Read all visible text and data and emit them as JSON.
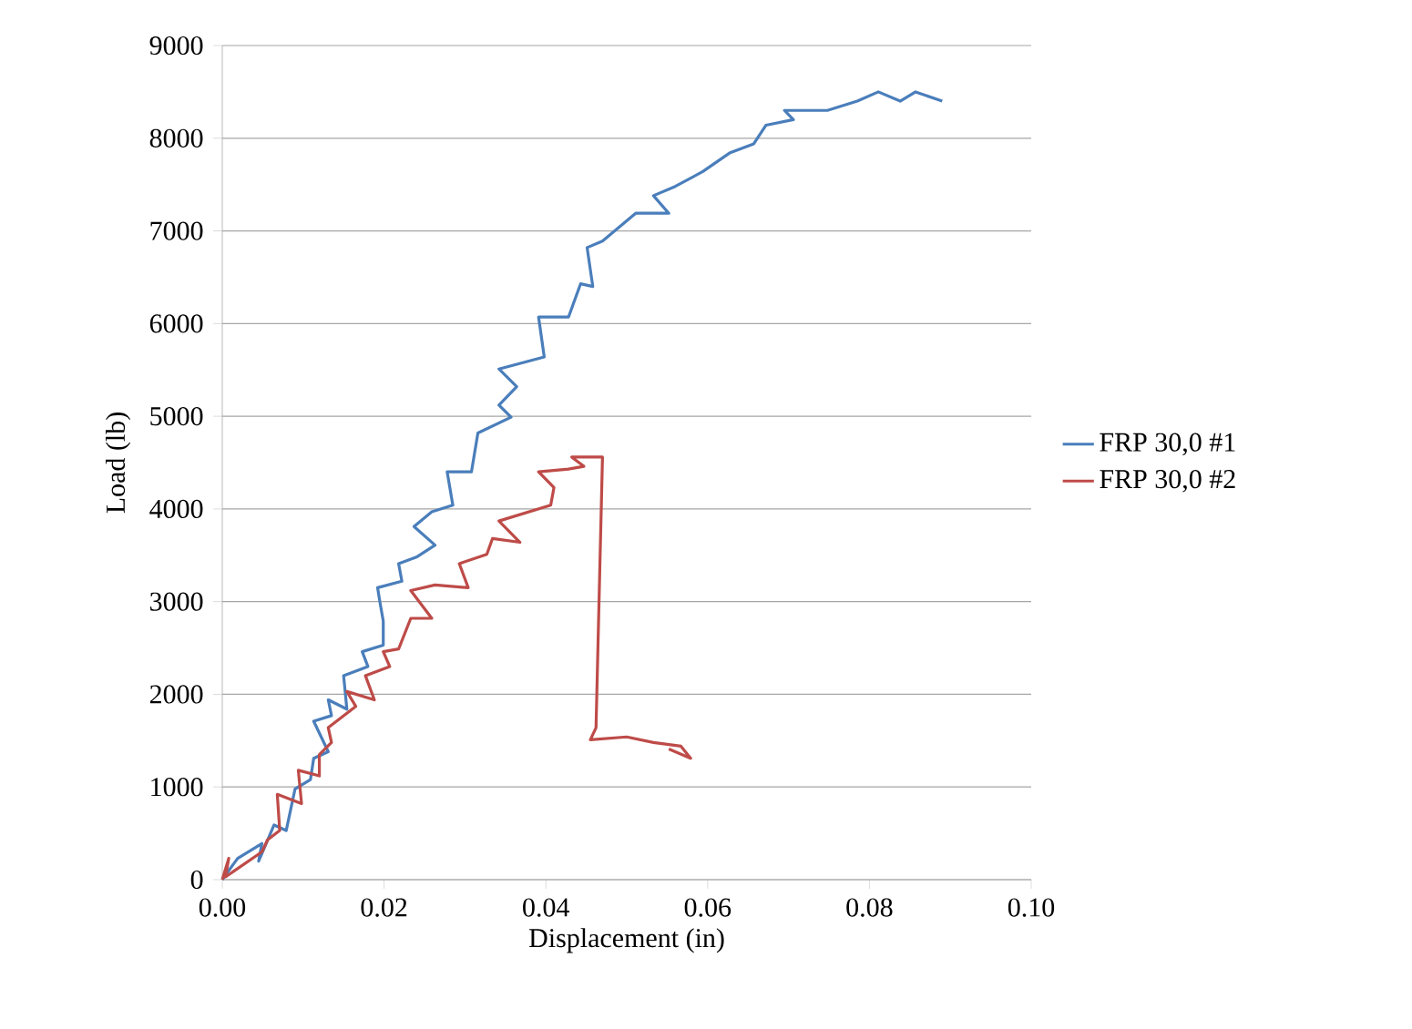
{
  "chart_data": {
    "type": "line",
    "xlabel": "Displacement (in)",
    "ylabel": "Load (lb)",
    "xlim": [
      0,
      0.1
    ],
    "ylim": [
      0,
      9000
    ],
    "xticks": [
      {
        "value": 0,
        "label": "0.00"
      },
      {
        "value": 0.02,
        "label": "0.02"
      },
      {
        "value": 0.04,
        "label": "0.04"
      },
      {
        "value": 0.06,
        "label": "0.06"
      },
      {
        "value": 0.08,
        "label": "0.08"
      },
      {
        "value": 0.1,
        "label": "0.10"
      }
    ],
    "yticks": [
      0,
      1000,
      2000,
      3000,
      4000,
      5000,
      6000,
      7000,
      8000,
      9000
    ],
    "grid": "y",
    "legend": "right",
    "series": [
      {
        "name": "FRP 30,0 #1",
        "color": "#4a7ebb",
        "x": [
          0,
          0.0019,
          0.0049,
          0.0045,
          0.0064,
          0.0079,
          0.009,
          0.0109,
          0.0113,
          0.0131,
          0.0113,
          0.0135,
          0.0131,
          0.0154,
          0.015,
          0.018,
          0.0173,
          0.0199,
          0.0199,
          0.0195,
          0.0192,
          0.0222,
          0.0218,
          0.024,
          0.0263,
          0.0237,
          0.0259,
          0.0285,
          0.0278,
          0.0308,
          0.0316,
          0.0357,
          0.0342,
          0.0364,
          0.0342,
          0.0398,
          0.0391,
          0.0428,
          0.0443,
          0.0458,
          0.0451,
          0.047,
          0.0511,
          0.0552,
          0.0533,
          0.056,
          0.0594,
          0.0627,
          0.0657,
          0.0672,
          0.0706,
          0.0695,
          0.0748,
          0.0785,
          0.0811,
          0.0838,
          0.0857,
          0.089
        ],
        "values": [
          0,
          230,
          390,
          200,
          590,
          530,
          980,
          1080,
          1310,
          1380,
          1710,
          1770,
          1940,
          1840,
          2200,
          2300,
          2460,
          2530,
          2790,
          2990,
          3150,
          3220,
          3410,
          3480,
          3610,
          3810,
          3970,
          4040,
          4400,
          4400,
          4820,
          4990,
          5120,
          5320,
          5510,
          5640,
          6070,
          6070,
          6430,
          6400,
          6820,
          6890,
          7190,
          7190,
          7380,
          7480,
          7640,
          7840,
          7940,
          8140,
          8200,
          8300,
          8300,
          8400,
          8500,
          8400,
          8500,
          8400
        ]
      },
      {
        "name": "FRP 30,0 #2",
        "color": "#be4b48",
        "x": [
          0,
          0.0008,
          0.0004,
          0.0049,
          0.0056,
          0.0071,
          0.0068,
          0.0098,
          0.0094,
          0.012,
          0.012,
          0.0135,
          0.0131,
          0.0165,
          0.0154,
          0.0188,
          0.0177,
          0.0207,
          0.0199,
          0.0218,
          0.0233,
          0.0259,
          0.0233,
          0.0263,
          0.0304,
          0.0293,
          0.0327,
          0.0334,
          0.0368,
          0.0342,
          0.0406,
          0.041,
          0.0391,
          0.0428,
          0.0447,
          0.0432,
          0.047,
          0.0462,
          0.0455,
          0.05,
          0.0533,
          0.0567,
          0.0579,
          0.0552
        ],
        "values": [
          0,
          230,
          30,
          300,
          430,
          530,
          920,
          820,
          1180,
          1120,
          1350,
          1480,
          1640,
          1870,
          2030,
          1940,
          2200,
          2300,
          2460,
          2490,
          2820,
          2820,
          3120,
          3180,
          3150,
          3410,
          3510,
          3680,
          3640,
          3870,
          4040,
          4230,
          4400,
          4430,
          4460,
          4560,
          4560,
          1640,
          1510,
          1540,
          1480,
          1440,
          1310,
          1410
        ]
      }
    ]
  }
}
